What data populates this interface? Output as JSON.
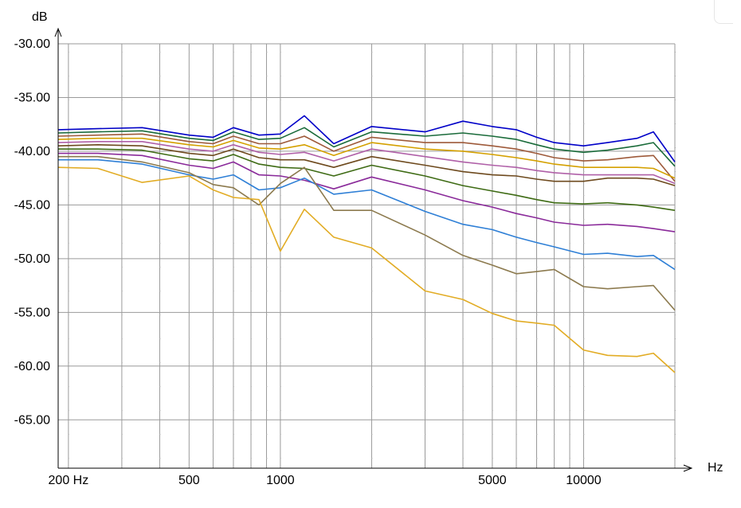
{
  "chart_data": {
    "type": "line",
    "x_scale": "log",
    "xlim": [
      185,
      20000
    ],
    "ylim": [
      -69.5,
      -30
    ],
    "grid": true,
    "xlabel": "Hz",
    "ylabel": "dB",
    "y_ticks": [
      {
        "value": -30,
        "label": "-30.00"
      },
      {
        "value": -35,
        "label": "-35.00"
      },
      {
        "value": -40,
        "label": "-40.00"
      },
      {
        "value": -45,
        "label": "-45.00"
      },
      {
        "value": -50,
        "label": "-50.00"
      },
      {
        "value": -55,
        "label": "-55.00"
      },
      {
        "value": -60,
        "label": "-60.00"
      },
      {
        "value": -65,
        "label": "-65.00"
      }
    ],
    "x_ticks": [
      {
        "value": 200,
        "label": "200 Hz"
      },
      {
        "value": 500,
        "label": "500"
      },
      {
        "value": 1000,
        "label": "1000"
      },
      {
        "value": 5000,
        "label": "5000"
      },
      {
        "value": 10000,
        "label": "10000"
      }
    ],
    "x": [
      185,
      250,
      350,
      500,
      600,
      700,
      850,
      1000,
      1200,
      1500,
      2000,
      3000,
      4000,
      5000,
      6000,
      7000,
      8000,
      10000,
      12000,
      15000,
      17000,
      20000
    ],
    "series": [
      {
        "color": "#0000c8",
        "values": [
          -38.0,
          -37.9,
          -37.8,
          -38.5,
          -38.7,
          -37.8,
          -38.5,
          -38.4,
          -36.7,
          -39.3,
          -37.7,
          -38.2,
          -37.2,
          -37.7,
          -38.0,
          -38.7,
          -39.2,
          -39.5,
          -39.2,
          -38.8,
          -38.2,
          -41.0
        ]
      },
      {
        "color": "#1a6b3a",
        "values": [
          -38.3,
          -38.2,
          -38.1,
          -38.8,
          -39.0,
          -38.2,
          -38.9,
          -38.8,
          -37.8,
          -39.6,
          -38.2,
          -38.6,
          -38.3,
          -38.6,
          -38.9,
          -39.4,
          -39.8,
          -40.1,
          -39.9,
          -39.5,
          -39.2,
          -41.4
        ]
      },
      {
        "color": "#9e5a3a",
        "values": [
          -38.6,
          -38.5,
          -38.4,
          -39.1,
          -39.3,
          -38.6,
          -39.3,
          -39.3,
          -38.6,
          -40.0,
          -38.7,
          -39.2,
          -39.2,
          -39.5,
          -39.8,
          -40.2,
          -40.6,
          -40.9,
          -40.8,
          -40.5,
          -40.4,
          -42.8
        ]
      },
      {
        "color": "#d4a000",
        "values": [
          -38.9,
          -38.8,
          -38.8,
          -39.4,
          -39.6,
          -39.0,
          -39.7,
          -39.8,
          -39.4,
          -40.4,
          -39.2,
          -39.8,
          -40.0,
          -40.3,
          -40.6,
          -40.9,
          -41.2,
          -41.5,
          -41.5,
          -41.5,
          -41.6,
          -42.5
        ]
      },
      {
        "color": "#b060a8",
        "values": [
          -39.2,
          -39.1,
          -39.1,
          -39.8,
          -40.0,
          -39.4,
          -40.1,
          -40.3,
          -40.1,
          -40.9,
          -39.8,
          -40.5,
          -41.0,
          -41.3,
          -41.5,
          -41.8,
          -42.0,
          -42.2,
          -42.2,
          -42.2,
          -42.2,
          -43.0
        ]
      },
      {
        "color": "#6e4a1e",
        "values": [
          -39.5,
          -39.4,
          -39.5,
          -40.2,
          -40.4,
          -39.8,
          -40.6,
          -40.8,
          -40.8,
          -41.5,
          -40.5,
          -41.3,
          -41.9,
          -42.2,
          -42.3,
          -42.6,
          -42.8,
          -42.8,
          -42.5,
          -42.5,
          -42.6,
          -43.2
        ]
      },
      {
        "color": "#3e6b14",
        "values": [
          -39.8,
          -39.8,
          -39.9,
          -40.7,
          -40.9,
          -40.3,
          -41.2,
          -41.5,
          -41.6,
          -42.3,
          -41.3,
          -42.3,
          -43.2,
          -43.7,
          -44.1,
          -44.5,
          -44.8,
          -44.9,
          -44.8,
          -45.0,
          -45.2,
          -45.5
        ]
      },
      {
        "color": "#8a2a9a",
        "values": [
          -40.2,
          -40.2,
          -40.4,
          -41.3,
          -41.6,
          -41.0,
          -42.2,
          -42.3,
          -42.7,
          -43.5,
          -42.4,
          -43.6,
          -44.6,
          -45.2,
          -45.8,
          -46.2,
          -46.6,
          -46.9,
          -46.8,
          -47.0,
          -47.2,
          -47.5
        ]
      },
      {
        "color": "#2e7fd6",
        "values": [
          -40.8,
          -40.8,
          -41.2,
          -42.2,
          -42.6,
          -42.2,
          -43.6,
          -43.4,
          -42.5,
          -44.0,
          -43.6,
          -45.6,
          -46.8,
          -47.3,
          -48.0,
          -48.5,
          -48.9,
          -49.6,
          -49.5,
          -49.8,
          -49.7,
          -51.0
        ]
      },
      {
        "color": "#8c7a4e",
        "values": [
          -40.5,
          -40.5,
          -41.0,
          -42.0,
          -43.1,
          -43.4,
          -45.0,
          -43.0,
          -41.5,
          -45.5,
          -45.5,
          -47.8,
          -49.7,
          -50.6,
          -51.4,
          -51.2,
          -51.0,
          -52.6,
          -52.8,
          -52.6,
          -52.5,
          -54.8
        ]
      },
      {
        "color": "#e2ac24",
        "values": [
          -41.5,
          -41.6,
          -42.9,
          -42.3,
          -43.6,
          -44.3,
          -44.5,
          -49.3,
          -45.4,
          -48.0,
          -49.0,
          -53.0,
          -53.8,
          -55.1,
          -55.8,
          -56.0,
          -56.2,
          -58.5,
          -59.0,
          -59.1,
          -58.8,
          -60.6
        ]
      }
    ]
  }
}
